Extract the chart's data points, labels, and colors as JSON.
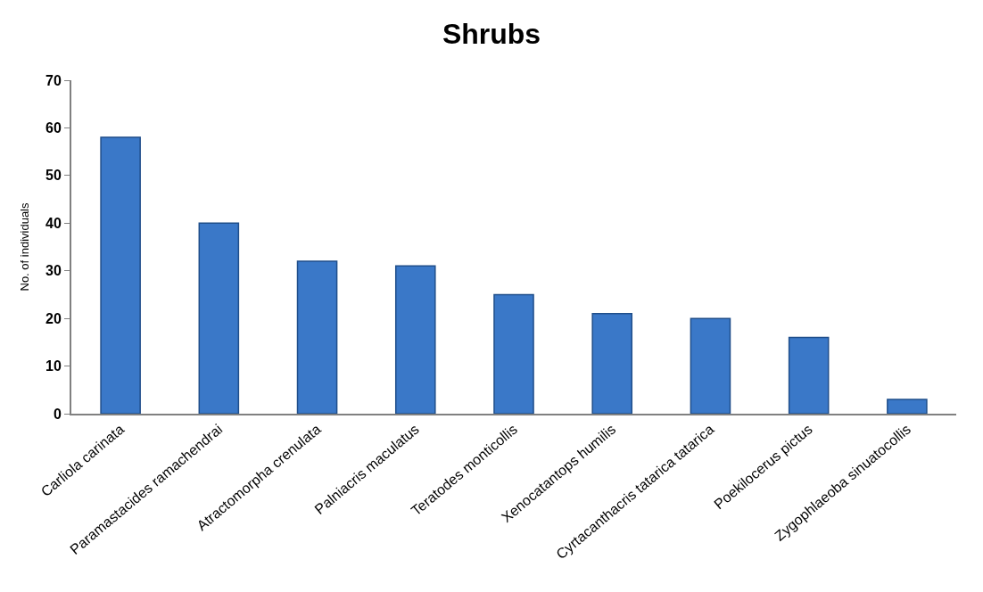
{
  "chart_data": {
    "type": "bar",
    "title": "Shrubs",
    "ylabel": "No. of individuals",
    "categories": [
      "Carliola carinata",
      "Paramastacides ramachendrai",
      "Atractomorpha crenulata",
      "Palniacris maculatus",
      "Teratodes monticollis",
      "Xenocatantops humilis",
      "Cyrtacanthacris tatarica tatarica",
      "Poekilocerus pictus",
      "Zygophlaeoba sinuatocollis"
    ],
    "values": [
      58,
      40,
      32,
      31,
      25,
      21,
      20,
      16,
      3
    ],
    "color": "#3a78c8",
    "ylim": [
      0,
      70
    ],
    "yticks": [
      0,
      10,
      20,
      30,
      40,
      50,
      60,
      70
    ]
  }
}
